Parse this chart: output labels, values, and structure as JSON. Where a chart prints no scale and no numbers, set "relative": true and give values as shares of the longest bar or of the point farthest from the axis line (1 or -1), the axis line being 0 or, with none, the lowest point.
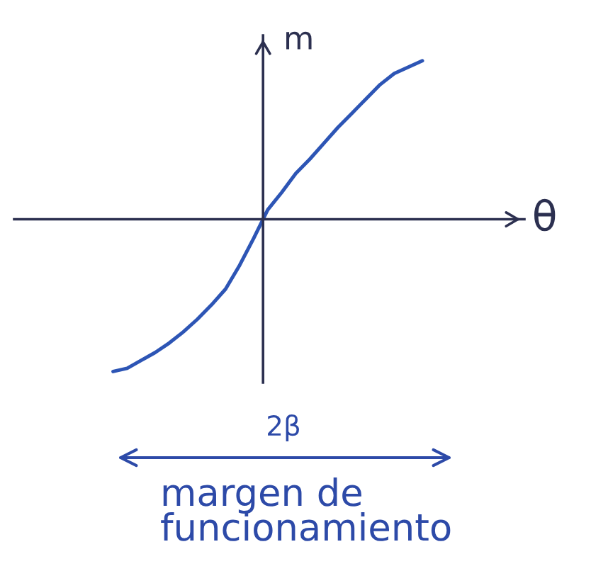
{
  "chart_data": {
    "type": "line",
    "relative": true,
    "xlabel": "θ",
    "ylabel": "m",
    "categories": [
      null,
      null,
      null,
      null,
      null,
      null,
      null,
      null,
      null,
      null,
      null,
      null,
      null,
      null,
      null,
      null,
      null,
      null,
      null,
      null,
      null,
      null,
      null
    ],
    "values": [
      -0.96,
      -0.94,
      -0.89,
      -0.84,
      -0.78,
      -0.71,
      -0.63,
      -0.54,
      -0.44,
      -0.29,
      -0.12,
      0.06,
      0.17,
      0.29,
      0.38,
      0.48,
      0.58,
      0.67,
      0.76,
      0.85,
      0.92,
      0.96,
      1
    ],
    "color": "#2d55b5",
    "annotations": [
      "2β",
      "margen de\nfuncionamiento"
    ]
  }
}
